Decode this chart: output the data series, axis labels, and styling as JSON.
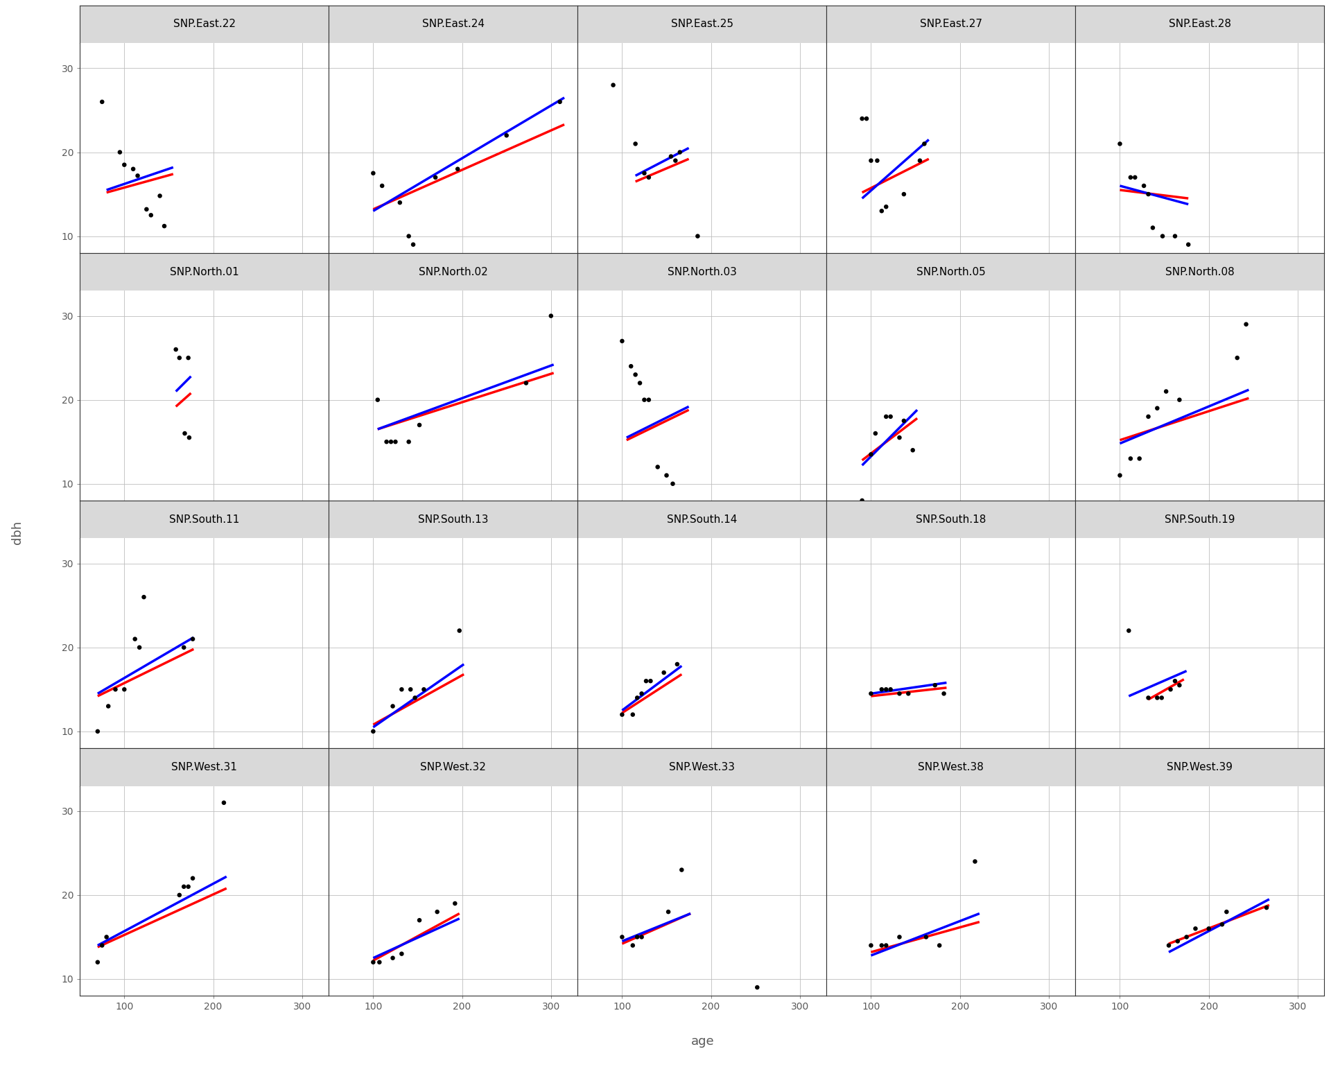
{
  "panels": [
    {
      "site": "SNP.East.22",
      "points": [
        [
          75,
          26
        ],
        [
          95,
          20
        ],
        [
          100,
          18.5
        ],
        [
          110,
          18
        ],
        [
          115,
          17.2
        ],
        [
          125,
          13.2
        ],
        [
          130,
          12.5
        ],
        [
          140,
          14.8
        ],
        [
          145,
          11.2
        ]
      ],
      "red_line": [
        [
          80,
          15.2
        ],
        [
          155,
          17.4
        ]
      ],
      "blue_line": [
        [
          80,
          15.5
        ],
        [
          155,
          18.2
        ]
      ]
    },
    {
      "site": "SNP.East.24",
      "points": [
        [
          100,
          17.5
        ],
        [
          110,
          16
        ],
        [
          130,
          14
        ],
        [
          140,
          10
        ],
        [
          145,
          9
        ],
        [
          170,
          17
        ],
        [
          195,
          18
        ],
        [
          250,
          22
        ],
        [
          310,
          26
        ]
      ],
      "red_line": [
        [
          100,
          13.2
        ],
        [
          315,
          23.3
        ]
      ],
      "blue_line": [
        [
          100,
          13.0
        ],
        [
          315,
          26.5
        ]
      ]
    },
    {
      "site": "SNP.East.25",
      "points": [
        [
          90,
          28
        ],
        [
          115,
          21
        ],
        [
          125,
          17.5
        ],
        [
          130,
          17
        ],
        [
          155,
          19.5
        ],
        [
          160,
          19
        ],
        [
          165,
          20
        ],
        [
          185,
          10
        ]
      ],
      "red_line": [
        [
          115,
          16.5
        ],
        [
          175,
          19.2
        ]
      ],
      "blue_line": [
        [
          115,
          17.2
        ],
        [
          175,
          20.5
        ]
      ]
    },
    {
      "site": "SNP.East.27",
      "points": [
        [
          90,
          24
        ],
        [
          95,
          24
        ],
        [
          100,
          19
        ],
        [
          107,
          19
        ],
        [
          112,
          13
        ],
        [
          117,
          13.5
        ],
        [
          137,
          15
        ],
        [
          155,
          19
        ],
        [
          160,
          21
        ]
      ],
      "red_line": [
        [
          90,
          15.2
        ],
        [
          165,
          19.2
        ]
      ],
      "blue_line": [
        [
          90,
          14.5
        ],
        [
          165,
          21.5
        ]
      ]
    },
    {
      "site": "SNP.East.28",
      "points": [
        [
          100,
          21
        ],
        [
          112,
          17
        ],
        [
          117,
          17
        ],
        [
          127,
          16
        ],
        [
          132,
          15
        ],
        [
          137,
          11
        ],
        [
          148,
          10
        ],
        [
          162,
          10
        ],
        [
          177,
          9
        ]
      ],
      "red_line": [
        [
          100,
          15.5
        ],
        [
          177,
          14.5
        ]
      ],
      "blue_line": [
        [
          100,
          16.0
        ],
        [
          177,
          13.8
        ]
      ]
    },
    {
      "site": "SNP.North.01",
      "points": [
        [
          158,
          26
        ],
        [
          162,
          25
        ],
        [
          172,
          25
        ],
        [
          168,
          16
        ],
        [
          173,
          15.5
        ]
      ],
      "red_line": [
        [
          158,
          19.2
        ],
        [
          175,
          20.8
        ]
      ],
      "blue_line": [
        [
          158,
          21.0
        ],
        [
          175,
          22.8
        ]
      ]
    },
    {
      "site": "SNP.North.02",
      "points": [
        [
          105,
          20
        ],
        [
          115,
          15
        ],
        [
          120,
          15
        ],
        [
          125,
          15
        ],
        [
          140,
          15
        ],
        [
          152,
          17
        ],
        [
          272,
          22
        ],
        [
          300,
          30
        ]
      ],
      "red_line": [
        [
          105,
          16.5
        ],
        [
          303,
          23.2
        ]
      ],
      "blue_line": [
        [
          105,
          16.5
        ],
        [
          303,
          24.2
        ]
      ]
    },
    {
      "site": "SNP.North.03",
      "points": [
        [
          100,
          27
        ],
        [
          110,
          24
        ],
        [
          115,
          23
        ],
        [
          120,
          22
        ],
        [
          125,
          20
        ],
        [
          130,
          20
        ],
        [
          140,
          12
        ],
        [
          150,
          11
        ],
        [
          157,
          10
        ]
      ],
      "red_line": [
        [
          105,
          15.2
        ],
        [
          175,
          18.8
        ]
      ],
      "blue_line": [
        [
          105,
          15.5
        ],
        [
          175,
          19.2
        ]
      ]
    },
    {
      "site": "SNP.North.05",
      "points": [
        [
          90,
          8
        ],
        [
          100,
          13.5
        ],
        [
          105,
          16
        ],
        [
          117,
          18
        ],
        [
          122,
          18
        ],
        [
          132,
          15.5
        ],
        [
          137,
          17.5
        ],
        [
          147,
          14
        ]
      ],
      "red_line": [
        [
          90,
          12.8
        ],
        [
          152,
          17.8
        ]
      ],
      "blue_line": [
        [
          90,
          12.2
        ],
        [
          152,
          18.8
        ]
      ]
    },
    {
      "site": "SNP.North.08",
      "points": [
        [
          100,
          11
        ],
        [
          112,
          13
        ],
        [
          122,
          13
        ],
        [
          132,
          18
        ],
        [
          142,
          19
        ],
        [
          152,
          21
        ],
        [
          167,
          20
        ],
        [
          232,
          25
        ],
        [
          242,
          29
        ]
      ],
      "red_line": [
        [
          100,
          15.2
        ],
        [
          245,
          20.2
        ]
      ],
      "blue_line": [
        [
          100,
          14.8
        ],
        [
          245,
          21.2
        ]
      ]
    },
    {
      "site": "SNP.South.11",
      "points": [
        [
          70,
          10
        ],
        [
          82,
          13
        ],
        [
          90,
          15
        ],
        [
          100,
          15
        ],
        [
          112,
          21
        ],
        [
          117,
          20
        ],
        [
          122,
          26
        ],
        [
          167,
          20
        ],
        [
          177,
          21
        ]
      ],
      "red_line": [
        [
          70,
          14.2
        ],
        [
          178,
          19.8
        ]
      ],
      "blue_line": [
        [
          70,
          14.5
        ],
        [
          178,
          21.2
        ]
      ]
    },
    {
      "site": "SNP.South.13",
      "points": [
        [
          100,
          10
        ],
        [
          122,
          13
        ],
        [
          132,
          15
        ],
        [
          142,
          15
        ],
        [
          147,
          14
        ],
        [
          157,
          15
        ],
        [
          197,
          22
        ]
      ],
      "red_line": [
        [
          100,
          10.8
        ],
        [
          202,
          16.8
        ]
      ],
      "blue_line": [
        [
          100,
          10.5
        ],
        [
          202,
          18.0
        ]
      ]
    },
    {
      "site": "SNP.South.14",
      "points": [
        [
          100,
          12
        ],
        [
          112,
          12
        ],
        [
          117,
          14
        ],
        [
          122,
          14.5
        ],
        [
          127,
          16
        ],
        [
          132,
          16
        ],
        [
          147,
          17
        ],
        [
          162,
          18
        ]
      ],
      "red_line": [
        [
          100,
          12.2
        ],
        [
          167,
          16.8
        ]
      ],
      "blue_line": [
        [
          100,
          12.5
        ],
        [
          167,
          17.8
        ]
      ]
    },
    {
      "site": "SNP.South.18",
      "points": [
        [
          100,
          14.5
        ],
        [
          112,
          15
        ],
        [
          117,
          15
        ],
        [
          122,
          15
        ],
        [
          132,
          14.5
        ],
        [
          142,
          14.5
        ],
        [
          172,
          15.5
        ],
        [
          182,
          14.5
        ]
      ],
      "red_line": [
        [
          100,
          14.2
        ],
        [
          185,
          15.2
        ]
      ],
      "blue_line": [
        [
          100,
          14.5
        ],
        [
          185,
          15.8
        ]
      ]
    },
    {
      "site": "SNP.South.19",
      "points": [
        [
          110,
          22
        ],
        [
          132,
          14
        ],
        [
          142,
          14
        ],
        [
          147,
          14
        ],
        [
          157,
          15
        ],
        [
          162,
          16
        ],
        [
          167,
          15.5
        ]
      ],
      "red_line": [
        [
          132,
          13.8
        ],
        [
          172,
          16.2
        ]
      ],
      "blue_line": [
        [
          110,
          14.2
        ],
        [
          175,
          17.2
        ]
      ]
    },
    {
      "site": "SNP.West.31",
      "points": [
        [
          70,
          12
        ],
        [
          75,
          14
        ],
        [
          80,
          15
        ],
        [
          162,
          20
        ],
        [
          167,
          21
        ],
        [
          172,
          21
        ],
        [
          177,
          22
        ],
        [
          212,
          31
        ]
      ],
      "red_line": [
        [
          70,
          13.8
        ],
        [
          215,
          20.8
        ]
      ],
      "blue_line": [
        [
          70,
          14.0
        ],
        [
          215,
          22.2
        ]
      ]
    },
    {
      "site": "SNP.West.32",
      "points": [
        [
          100,
          12
        ],
        [
          107,
          12
        ],
        [
          122,
          12.5
        ],
        [
          132,
          13
        ],
        [
          152,
          17
        ],
        [
          172,
          18
        ],
        [
          192,
          19
        ]
      ],
      "red_line": [
        [
          100,
          12.2
        ],
        [
          197,
          17.8
        ]
      ],
      "blue_line": [
        [
          100,
          12.5
        ],
        [
          197,
          17.2
        ]
      ]
    },
    {
      "site": "SNP.West.33",
      "points": [
        [
          100,
          15
        ],
        [
          112,
          14
        ],
        [
          117,
          15
        ],
        [
          122,
          15
        ],
        [
          152,
          18
        ],
        [
          167,
          23
        ],
        [
          252,
          9
        ]
      ],
      "red_line": [
        [
          100,
          14.2
        ],
        [
          177,
          17.8
        ]
      ],
      "blue_line": [
        [
          100,
          14.5
        ],
        [
          177,
          17.8
        ]
      ]
    },
    {
      "site": "SNP.West.38",
      "points": [
        [
          100,
          14
        ],
        [
          112,
          14
        ],
        [
          117,
          14
        ],
        [
          132,
          15
        ],
        [
          162,
          15
        ],
        [
          177,
          14
        ],
        [
          217,
          24
        ]
      ],
      "red_line": [
        [
          100,
          13.2
        ],
        [
          222,
          16.8
        ]
      ],
      "blue_line": [
        [
          100,
          12.8
        ],
        [
          222,
          17.8
        ]
      ]
    },
    {
      "site": "SNP.West.39",
      "points": [
        [
          155,
          14
        ],
        [
          165,
          14.5
        ],
        [
          175,
          15
        ],
        [
          185,
          16
        ],
        [
          200,
          16
        ],
        [
          215,
          16.5
        ],
        [
          220,
          18
        ],
        [
          265,
          18.5
        ]
      ],
      "red_line": [
        [
          155,
          14.2
        ],
        [
          268,
          18.8
        ]
      ],
      "blue_line": [
        [
          155,
          13.2
        ],
        [
          268,
          19.5
        ]
      ]
    }
  ],
  "nrows": 4,
  "ncols": 5,
  "xlim": [
    50,
    330
  ],
  "ylim": [
    8,
    33
  ],
  "xticks": [
    100,
    200,
    300
  ],
  "yticks": [
    10,
    20,
    30
  ],
  "xlabel": "age",
  "ylabel": "dbh",
  "red_color": "#FF0000",
  "blue_color": "#0000FF",
  "point_color": "#000000",
  "strip_bg": "#D9D9D9",
  "plot_bg": "#FFFFFF",
  "panel_bg": "#EBEBEB",
  "grid_color": "#BEBEBE",
  "strip_fontsize": 11,
  "axis_label_fontsize": 13,
  "tick_fontsize": 10,
  "tick_color": "#5A5A5A",
  "point_size": 22,
  "line_width": 2.5
}
